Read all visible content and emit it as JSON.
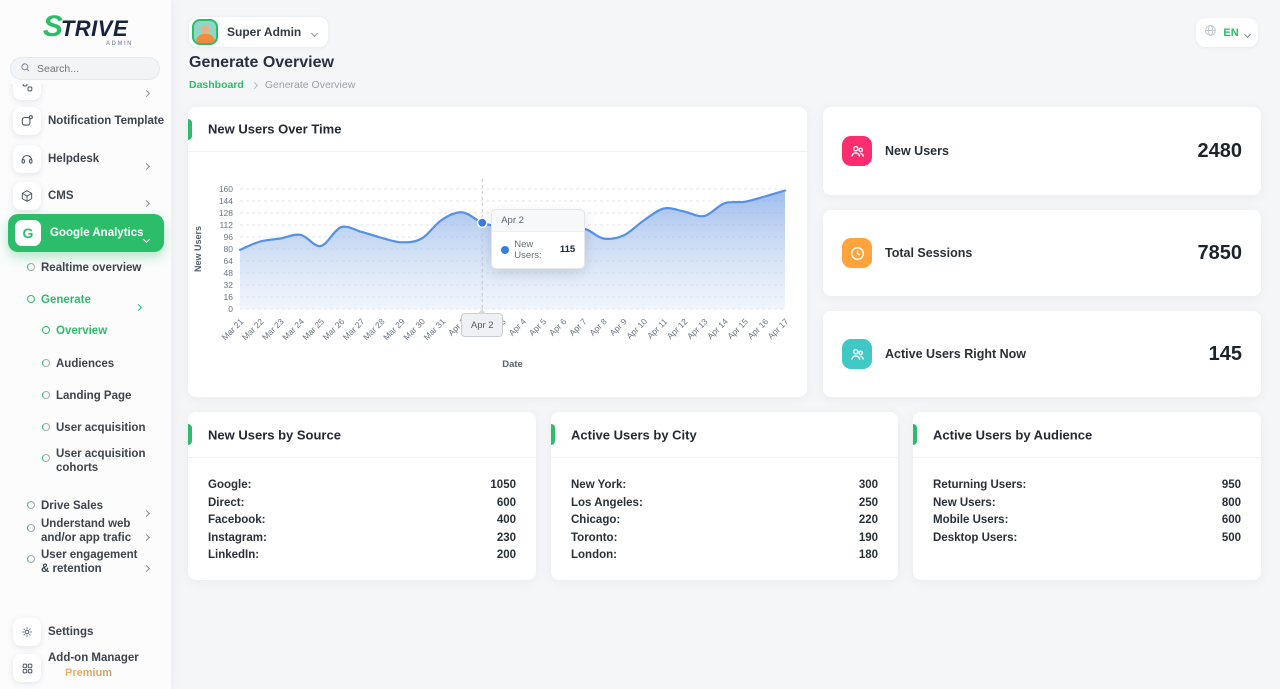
{
  "brand": {
    "name_s": "S",
    "name_rest": "TRIVE",
    "subtitle": "ADMIN"
  },
  "topbar": {
    "user_name": "Super Admin",
    "language": "EN"
  },
  "page": {
    "title": "Generate Overview",
    "breadcrumb_home": "Dashboard",
    "breadcrumb_current": "Generate Overview"
  },
  "sidebar": {
    "search_placeholder": "Search...",
    "items": {
      "notification_template": "Notification Template",
      "helpdesk": "Helpdesk",
      "cms": "CMS",
      "google_analytics": "Google Analytics",
      "realtime_overview": "Realtime overview",
      "generate": "Generate",
      "overview": "Overview",
      "audiences": "Audiences",
      "landing_page": "Landing Page",
      "user_acquisition": "User acquisition",
      "user_acquisition_cohorts": "User acquisition cohorts",
      "drive_sales": "Drive Sales",
      "understand_web": "Understand web and/or app trafic",
      "user_engagement": "User engagement & retention",
      "settings": "Settings",
      "addon_manager": "Add-on Manager",
      "addon_badge": "Premium"
    }
  },
  "chart_card": {
    "title": "New Users Over Time"
  },
  "chart_data": {
    "type": "area",
    "title": "New Users Over Time",
    "xlabel": "Date",
    "ylabel": "New Users",
    "x": [
      "Mar 21",
      "Mar 22",
      "Mar 23",
      "Mar 24",
      "Mar 25",
      "Mar 26",
      "Mar 27",
      "Mar 28",
      "Mar 29",
      "Mar 30",
      "Mar 31",
      "Apr 1",
      "Apr 2",
      "Apr 3",
      "Apr 4",
      "Apr 5",
      "Apr 6",
      "Apr 7",
      "Apr 8",
      "Apr 9",
      "Apr 10",
      "Apr 11",
      "Apr 12",
      "Apr 13",
      "Apr 14",
      "Apr 15",
      "Apr 16",
      "Apr 17"
    ],
    "values": [
      79,
      90,
      94,
      99,
      84,
      109,
      103,
      95,
      89,
      94,
      119,
      129,
      115,
      108,
      97,
      91,
      94,
      107,
      94,
      98,
      118,
      134,
      130,
      124,
      141,
      143,
      150,
      158
    ],
    "ylim": [
      0,
      160
    ],
    "yticks": [
      0,
      16,
      32,
      48,
      64,
      80,
      96,
      112,
      128,
      144,
      160
    ],
    "grid": "dashed-horizontal",
    "line_color": "#5591e9",
    "dot_color": "#3b7ce0",
    "highlight_index": 12,
    "tooltip": {
      "title": "Apr 2",
      "label": "New Users:",
      "value": "115"
    }
  },
  "stats": [
    {
      "label": "New Users",
      "value": "2480",
      "icon": "users-icon",
      "color": "#fb2d71"
    },
    {
      "label": "Total Sessions",
      "value": "7850",
      "icon": "clock-icon",
      "color": "#ffa43c"
    },
    {
      "label": "Active Users Right Now",
      "value": "145",
      "icon": "users-icon",
      "color": "#3fc8c4"
    }
  ],
  "lists": [
    {
      "title": "New Users by Source",
      "rows": [
        [
          "Google:",
          "1050"
        ],
        [
          "Direct:",
          "600"
        ],
        [
          "Facebook:",
          "400"
        ],
        [
          "Instagram:",
          "230"
        ],
        [
          "LinkedIn:",
          "200"
        ]
      ]
    },
    {
      "title": "Active Users by City",
      "rows": [
        [
          "New York:",
          "300"
        ],
        [
          "Los Angeles:",
          "250"
        ],
        [
          "Chicago:",
          "220"
        ],
        [
          "Toronto:",
          "190"
        ],
        [
          "London:",
          "180"
        ]
      ]
    },
    {
      "title": "Active Users by Audience",
      "rows": [
        [
          "Returning Users:",
          "950"
        ],
        [
          "New Users:",
          "800"
        ],
        [
          "Mobile Users:",
          "600"
        ],
        [
          "Desktop Users:",
          "500"
        ]
      ]
    }
  ],
  "colors": {
    "accent": "#2bbd69"
  }
}
